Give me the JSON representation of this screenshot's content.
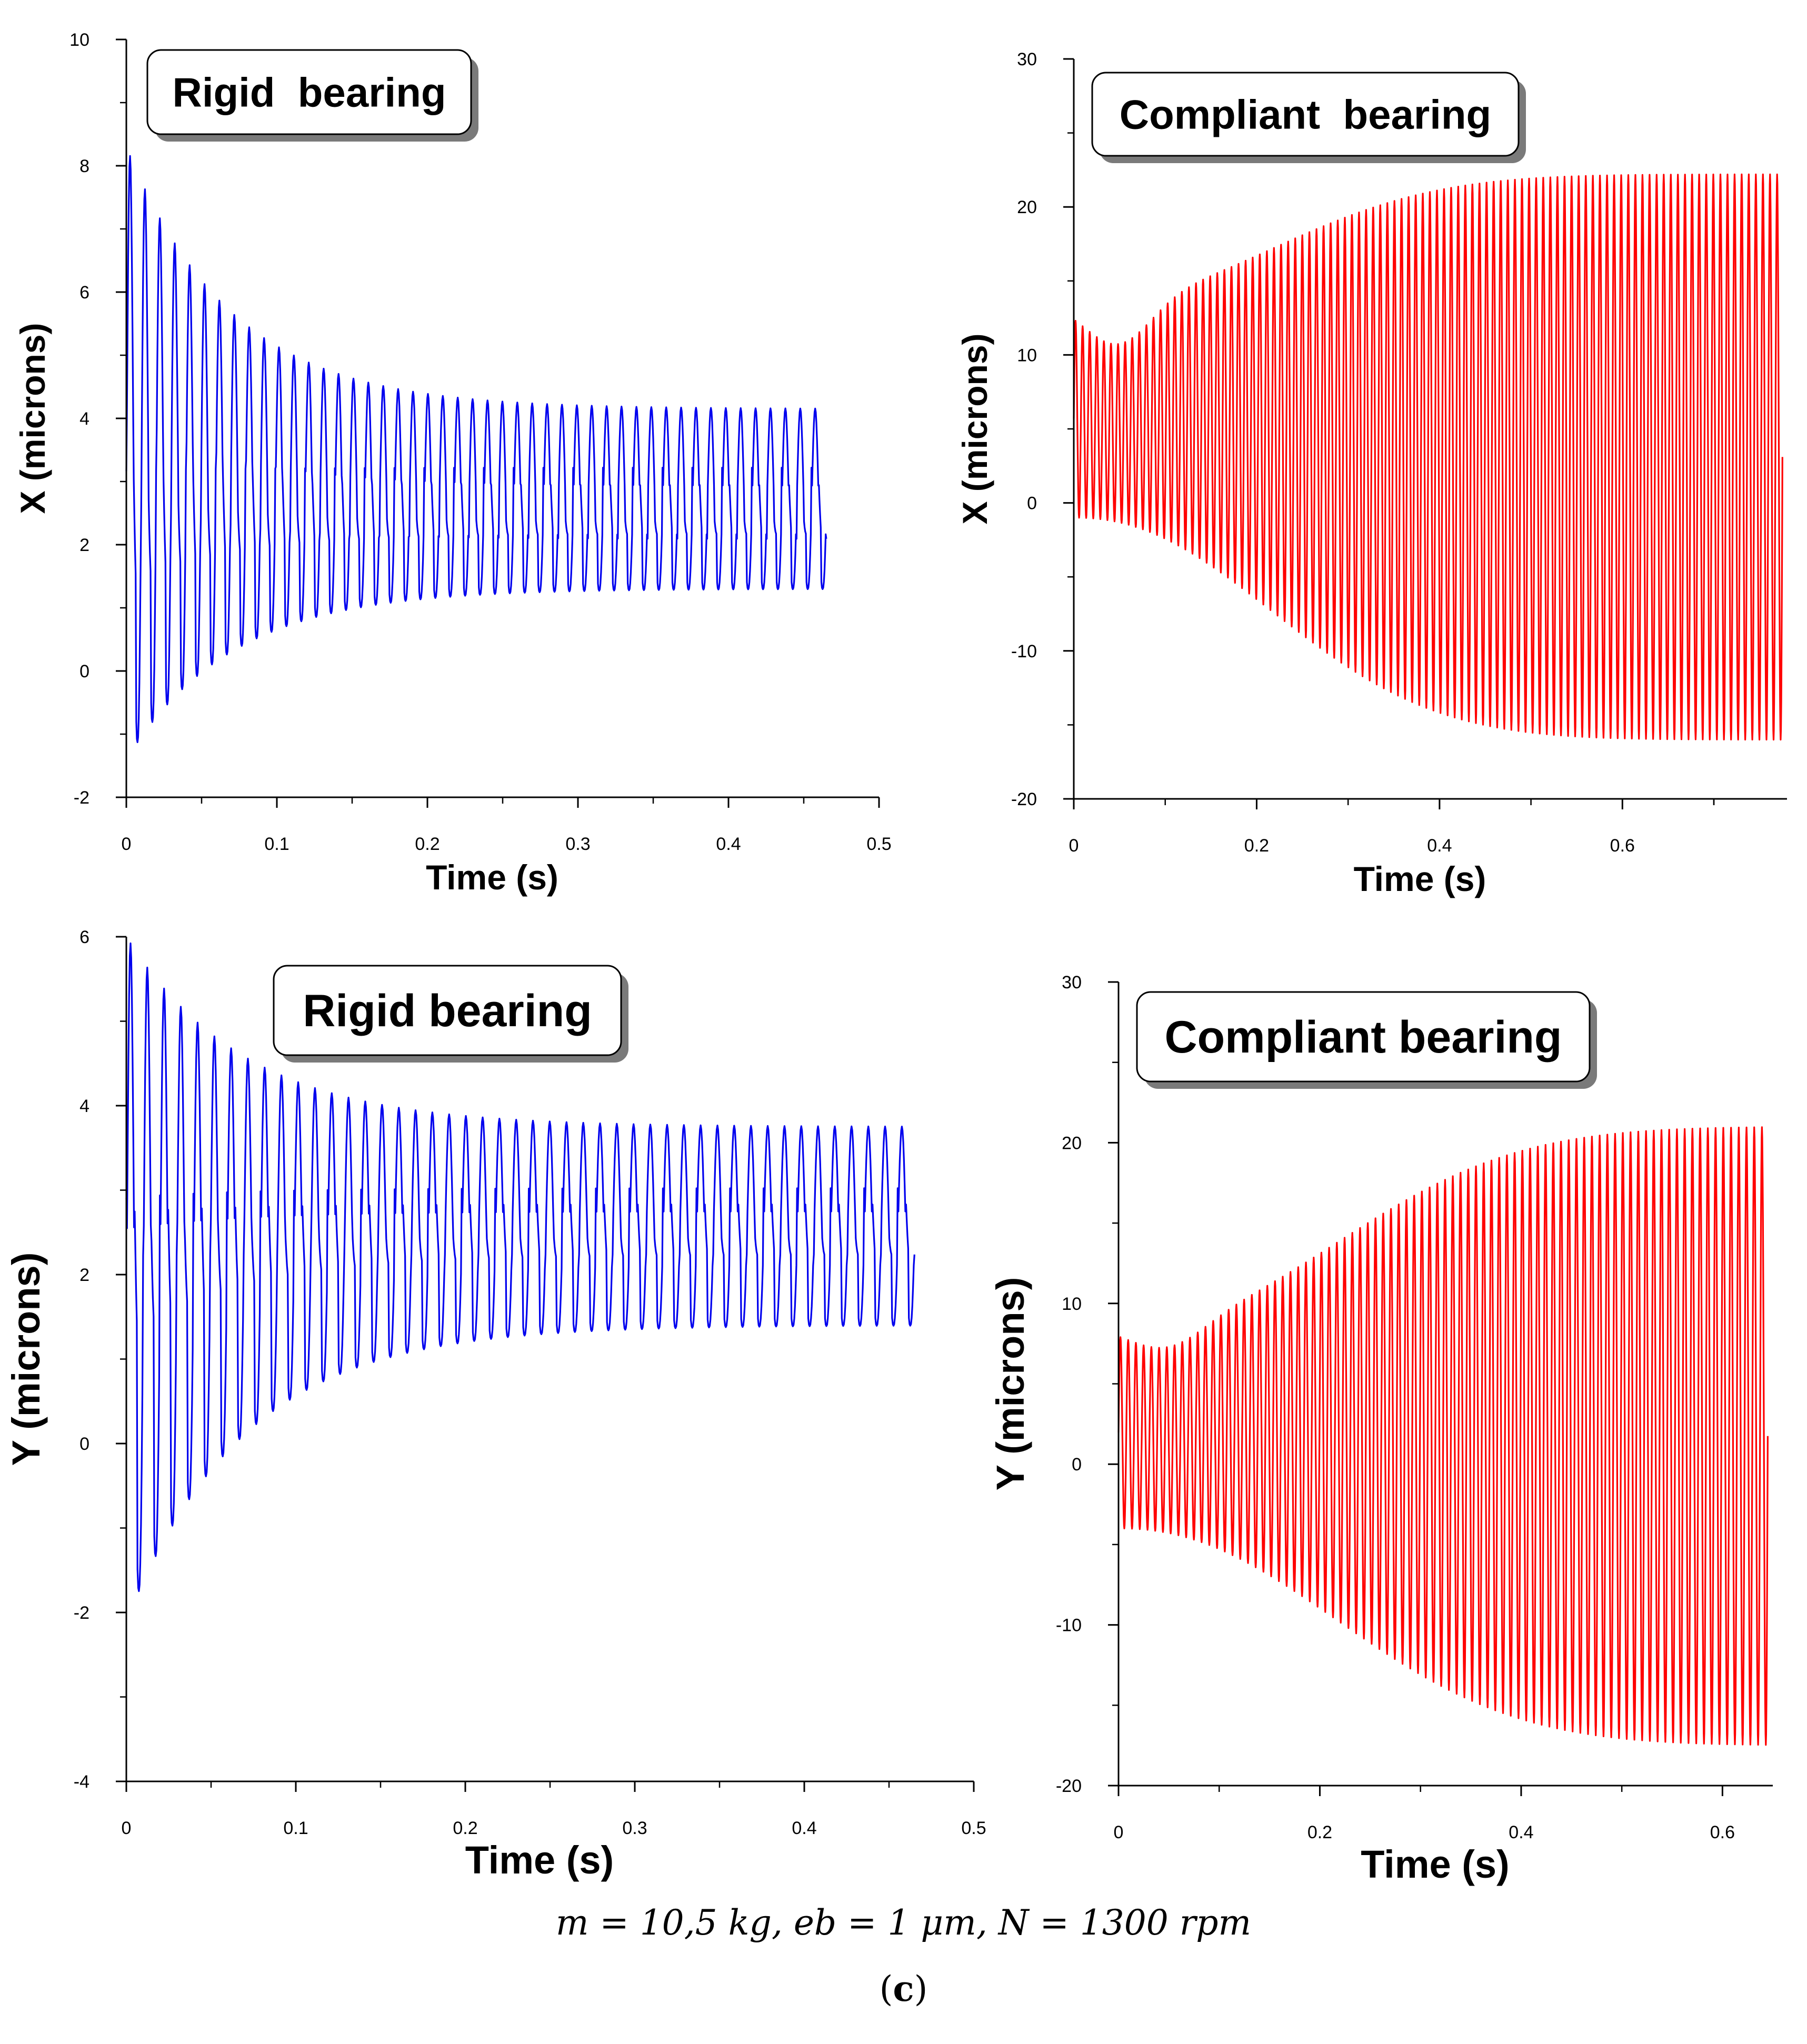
{
  "charts": [
    {
      "id": "rigid-x",
      "type": "line",
      "title": "Rigid  bearing",
      "xlabel": "Time  (s)",
      "ylabel": "X  (microns)",
      "xlim": [
        0,
        0.5
      ],
      "ylim": [
        -2,
        10
      ],
      "xticks": [
        0,
        0.1,
        0.2,
        0.3,
        0.4,
        0.5
      ],
      "xtick_labels": [
        "0",
        "0.1",
        "0.2",
        "0.3",
        "0.4",
        "0.5"
      ],
      "yticks": [
        -2,
        0,
        2,
        4,
        6,
        8,
        10
      ],
      "ytick_labels": [
        "-2",
        "0",
        "2",
        "4",
        "6",
        "8",
        "10"
      ],
      "color": "#0000ee",
      "series": {
        "name": "X response",
        "t_end": 0.465,
        "cycles": 47,
        "upper_start": 8.3,
        "upper_end": 4.15,
        "lower_start": -1.4,
        "lower_end": 1.3,
        "decay_time_s": 0.07,
        "mid_peak_start": 3.5,
        "mid_peak_end": 3.9,
        "mid_trough_start": 2.5,
        "mid_trough_end": 1.6
      }
    },
    {
      "id": "compliant-x",
      "type": "line",
      "title": "Compliant  bearing",
      "xlabel": "Time  (s)",
      "ylabel": "X  (microns)",
      "xlim": [
        0,
        0.78
      ],
      "ylim": [
        -20,
        30
      ],
      "xticks": [
        0,
        0.2,
        0.4,
        0.6
      ],
      "xtick_labels": [
        "0",
        "0.2",
        "0.4",
        "0.6"
      ],
      "yticks": [
        -20,
        -10,
        0,
        10,
        20,
        30
      ],
      "ytick_labels": [
        "-20",
        "-10",
        "0",
        "10",
        "20",
        "30"
      ],
      "color": "#ff0000",
      "series": {
        "name": "X response",
        "t_end": 0.775,
        "cycles": 100,
        "upper_start": 13.5,
        "upper_min": 10.5,
        "upper_end": 22.2,
        "lower_start": -1.0,
        "lower_end": -16.0,
        "growth_time_s": 0.15
      }
    },
    {
      "id": "rigid-y",
      "type": "line",
      "title": "Rigid bearing",
      "xlabel": "Time  (s)",
      "ylabel": "Y  (microns)",
      "xlim": [
        0,
        0.5
      ],
      "ylim": [
        -4,
        6
      ],
      "xticks": [
        0,
        0.1,
        0.2,
        0.3,
        0.4,
        0.5
      ],
      "xtick_labels": [
        "0",
        "0.1",
        "0.2",
        "0.3",
        "0.4",
        "0.5"
      ],
      "yticks": [
        -4,
        -2,
        0,
        2,
        4,
        6
      ],
      "ytick_labels": [
        "-4",
        "-2",
        "0",
        "2",
        "4",
        "6"
      ],
      "color": "#0000ee",
      "series": {
        "name": "Y response",
        "t_end": 0.465,
        "cycles": 47,
        "upper_start": 6.0,
        "upper_end": 3.75,
        "lower_start": -2.1,
        "lower_end": 1.4,
        "decay_time_s": 0.07,
        "mid_peak_start": 4.2,
        "mid_peak_end": 3.6,
        "mid_trough_start": 2.8,
        "mid_trough_end": 2.0
      }
    },
    {
      "id": "compliant-y",
      "type": "line",
      "title": "Compliant bearing",
      "xlabel": "Time  (s)",
      "ylabel": "Y  (microns)",
      "xlim": [
        0,
        0.65
      ],
      "ylim": [
        -20,
        30
      ],
      "xticks": [
        0,
        0.2,
        0.4,
        0.6
      ],
      "xtick_labels": [
        "0",
        "0.2",
        "0.4",
        "0.6"
      ],
      "yticks": [
        -20,
        -10,
        0,
        10,
        20,
        30
      ],
      "ytick_labels": [
        "-20",
        "-10",
        "0",
        "10",
        "20",
        "30"
      ],
      "color": "#ff0000",
      "series": {
        "name": "Y response",
        "t_end": 0.645,
        "cycles": 84,
        "upper_start": 8.5,
        "upper_min": 7.0,
        "upper_end": 21.0,
        "lower_start": -4.0,
        "lower_end": -17.5,
        "growth_time_s": 0.15
      }
    }
  ],
  "caption": {
    "params": "m = 10,5 kg, eb = 1 μm, N = 1300 rpm",
    "label_open": "(",
    "label_letter": "c",
    "label_close": ")"
  }
}
